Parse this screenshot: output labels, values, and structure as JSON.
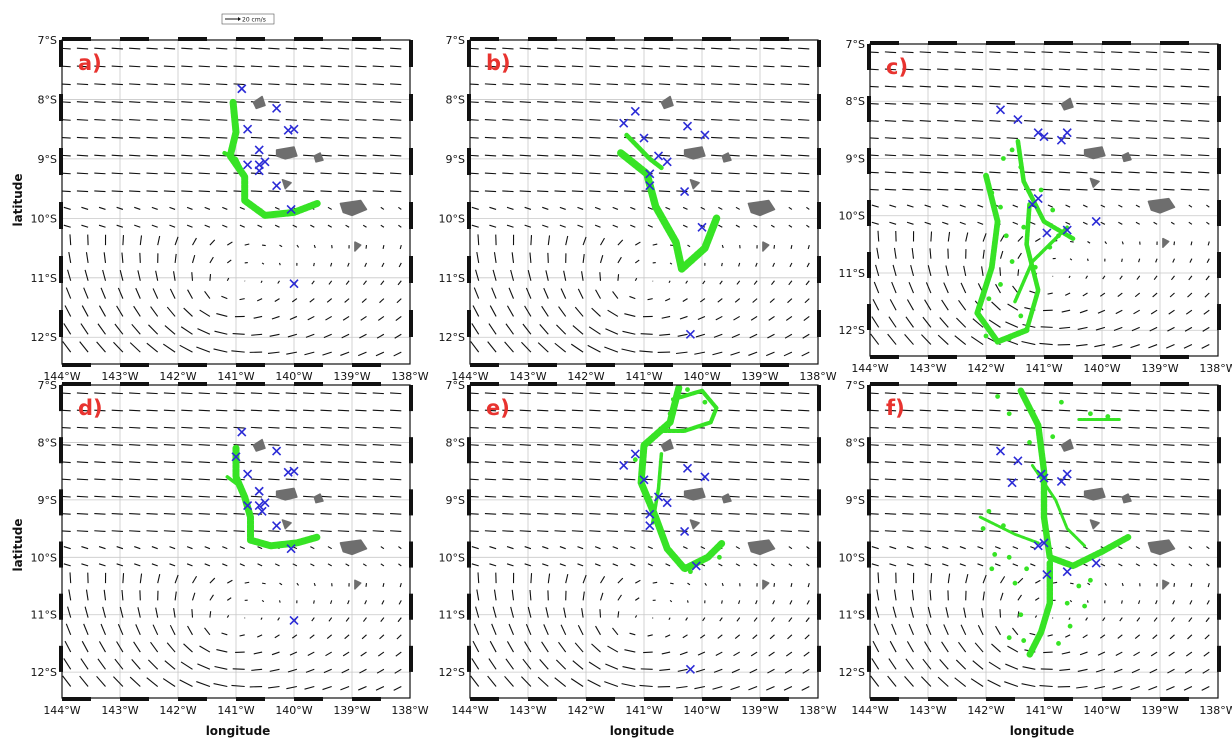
{
  "figure": {
    "scale_label": "20 cm/s",
    "xlabel": "longitude",
    "ylabel": "latitude",
    "lat_ticks": [
      "7°S",
      "8°S",
      "9°S",
      "10°S",
      "11°S",
      "12°S"
    ],
    "lat_values": [
      -7,
      -8,
      -9,
      -10,
      -11,
      -12
    ],
    "lon_ticks": [
      "144°W",
      "143°W",
      "142°W",
      "141°W",
      "140°W",
      "139°W",
      "138°W"
    ],
    "lon_values": [
      -144,
      -143,
      -142,
      -141,
      -140,
      -139,
      -138
    ],
    "lon_range": [
      -144,
      -138
    ],
    "lat_range": [
      -12.45,
      -7
    ],
    "colors": {
      "larvae": "#37e325",
      "stations": "#2b2bd6",
      "arrows": "#111111",
      "land": "#6e6e6e",
      "labels": "#e8332f",
      "grid": "#c8c8c8"
    },
    "panels": [
      {
        "label": "a)",
        "stations": [
          [
            -140.9,
            -7.82
          ],
          [
            -140.8,
            -8.5
          ],
          [
            -140.3,
            -8.15
          ],
          [
            -140,
            -8.5
          ],
          [
            -140.1,
            -8.52
          ],
          [
            -140.6,
            -8.85
          ],
          [
            -140.8,
            -9.1
          ],
          [
            -140.6,
            -9.1
          ],
          [
            -140.6,
            -9.2
          ],
          [
            -140.5,
            -9.05
          ],
          [
            -140.3,
            -9.45
          ],
          [
            -140.05,
            -9.85
          ],
          [
            -140,
            -11.1
          ]
        ],
        "larvae_paths": [
          {
            "path": [
              [
                -141.05,
                -8.05
              ],
              [
                -141.0,
                -8.55
              ],
              [
                -141.1,
                -8.95
              ],
              [
                -140.85,
                -9.3
              ],
              [
                -140.85,
                -9.7
              ],
              [
                -140.5,
                -9.95
              ],
              [
                -140.0,
                -9.9
              ],
              [
                -139.6,
                -9.75
              ]
            ],
            "width": 0.12
          },
          {
            "path": [
              [
                -141.2,
                -8.9
              ],
              [
                -141.0,
                -9.0
              ],
              [
                -140.9,
                -9.2
              ]
            ],
            "width": 0.07
          }
        ],
        "larvae_scatter": []
      },
      {
        "label": "b)",
        "stations": [
          [
            -141.35,
            -8.4
          ],
          [
            -141.15,
            -8.2
          ],
          [
            -141.0,
            -8.65
          ],
          [
            -140.25,
            -8.45
          ],
          [
            -139.95,
            -8.6
          ],
          [
            -140.75,
            -8.95
          ],
          [
            -140.6,
            -9.05
          ],
          [
            -140.9,
            -9.25
          ],
          [
            -140.9,
            -9.45
          ],
          [
            -140.3,
            -9.55
          ],
          [
            -140.0,
            -10.15
          ],
          [
            -140.2,
            -11.95
          ]
        ],
        "larvae_paths": [
          {
            "path": [
              [
                -141.4,
                -8.9
              ],
              [
                -140.95,
                -9.25
              ],
              [
                -140.8,
                -9.8
              ],
              [
                -140.45,
                -10.4
              ],
              [
                -140.35,
                -10.85
              ],
              [
                -139.95,
                -10.5
              ],
              [
                -139.75,
                -10.0
              ]
            ],
            "width": 0.13
          },
          {
            "path": [
              [
                -141.3,
                -8.6
              ],
              [
                -140.9,
                -9.0
              ],
              [
                -140.7,
                -9.15
              ]
            ],
            "width": 0.08
          }
        ],
        "larvae_scatter": []
      },
      {
        "label": "c)",
        "stations": [
          [
            -141.75,
            -8.15
          ],
          [
            -141.45,
            -8.32
          ],
          [
            -141.1,
            -8.55
          ],
          [
            -141.0,
            -8.62
          ],
          [
            -140.7,
            -8.68
          ],
          [
            -140.6,
            -8.55
          ],
          [
            -141.2,
            -9.8
          ],
          [
            -141.1,
            -9.7
          ],
          [
            -140.95,
            -10.3
          ],
          [
            -140.6,
            -10.25
          ],
          [
            -140.1,
            -10.1
          ]
        ],
        "larvae_paths": [
          {
            "path": [
              [
                -141.45,
                -8.7
              ],
              [
                -141.35,
                -9.4
              ],
              [
                -141.0,
                -10.1
              ],
              [
                -140.5,
                -10.4
              ]
            ],
            "width": 0.08
          },
          {
            "path": [
              [
                -142.0,
                -9.3
              ],
              [
                -141.8,
                -10.1
              ],
              [
                -141.9,
                -10.9
              ],
              [
                -142.15,
                -11.7
              ],
              [
                -141.8,
                -12.2
              ],
              [
                -141.3,
                -12.0
              ]
            ],
            "width": 0.1
          },
          {
            "path": [
              [
                -141.3,
                -12.0
              ],
              [
                -141.1,
                -11.3
              ],
              [
                -141.3,
                -10.5
              ],
              [
                -141.25,
                -9.8
              ]
            ],
            "width": 0.08
          },
          {
            "path": [
              [
                -141.5,
                -11.5
              ],
              [
                -141.2,
                -10.8
              ],
              [
                -140.6,
                -10.2
              ]
            ],
            "width": 0.06
          }
        ],
        "larvae_scatter": [
          [
            -141.7,
            -9.0
          ],
          [
            -141.55,
            -8.85
          ],
          [
            -141.4,
            -9.15
          ],
          [
            -141.9,
            -9.6
          ],
          [
            -141.65,
            -10.35
          ],
          [
            -141.55,
            -10.8
          ],
          [
            -141.75,
            -11.2
          ],
          [
            -141.15,
            -10.9
          ],
          [
            -140.9,
            -10.55
          ],
          [
            -140.75,
            -10.35
          ],
          [
            -141.4,
            -11.75
          ],
          [
            -142.0,
            -12.1
          ],
          [
            -141.6,
            -12.15
          ],
          [
            -141.35,
            -10.2
          ],
          [
            -141.05,
            -9.55
          ],
          [
            -140.85,
            -9.9
          ],
          [
            -141.75,
            -9.85
          ],
          [
            -141.95,
            -11.45
          ]
        ]
      },
      {
        "label": "d)",
        "stations": [
          [
            -140.9,
            -7.82
          ],
          [
            -141.0,
            -8.25
          ],
          [
            -140.8,
            -8.55
          ],
          [
            -140.3,
            -8.15
          ],
          [
            -140.0,
            -8.5
          ],
          [
            -140.1,
            -8.52
          ],
          [
            -140.6,
            -8.85
          ],
          [
            -140.8,
            -9.1
          ],
          [
            -140.6,
            -9.1
          ],
          [
            -140.55,
            -9.2
          ],
          [
            -140.5,
            -9.05
          ],
          [
            -140.3,
            -9.45
          ],
          [
            -140.05,
            -9.85
          ],
          [
            -140.0,
            -11.1
          ]
        ],
        "larvae_paths": [
          {
            "path": [
              [
                -141.0,
                -8.1
              ],
              [
                -141.0,
                -8.6
              ],
              [
                -140.85,
                -8.95
              ],
              [
                -140.75,
                -9.3
              ],
              [
                -140.75,
                -9.7
              ],
              [
                -140.4,
                -9.8
              ],
              [
                -139.95,
                -9.75
              ],
              [
                -139.6,
                -9.65
              ]
            ],
            "width": 0.12
          },
          {
            "path": [
              [
                -141.15,
                -8.6
              ],
              [
                -140.95,
                -8.75
              ]
            ],
            "width": 0.06
          }
        ],
        "larvae_scatter": []
      },
      {
        "label": "e)",
        "stations": [
          [
            -141.35,
            -8.4
          ],
          [
            -141.15,
            -8.2
          ],
          [
            -141.0,
            -8.65
          ],
          [
            -140.25,
            -8.45
          ],
          [
            -139.95,
            -8.6
          ],
          [
            -140.75,
            -8.95
          ],
          [
            -140.6,
            -9.05
          ],
          [
            -140.9,
            -9.25
          ],
          [
            -140.9,
            -9.45
          ],
          [
            -140.3,
            -9.55
          ],
          [
            -140.1,
            -10.15
          ],
          [
            -140.2,
            -11.95
          ]
        ],
        "larvae_paths": [
          {
            "path": [
              [
                -140.4,
                -7.05
              ],
              [
                -140.55,
                -7.65
              ],
              [
                -141.0,
                -8.05
              ],
              [
                -141.05,
                -8.7
              ],
              [
                -140.8,
                -9.3
              ],
              [
                -140.6,
                -9.85
              ],
              [
                -140.3,
                -10.2
              ],
              [
                -139.9,
                -10.0
              ],
              [
                -139.65,
                -9.75
              ]
            ],
            "width": 0.12
          },
          {
            "path": [
              [
                -140.5,
                -7.25
              ],
              [
                -140.0,
                -7.1
              ],
              [
                -139.75,
                -7.4
              ],
              [
                -139.85,
                -7.65
              ],
              [
                -140.3,
                -7.8
              ],
              [
                -140.7,
                -7.8
              ]
            ],
            "width": 0.07
          },
          {
            "path": [
              [
                -140.7,
                -8.2
              ],
              [
                -140.75,
                -8.8
              ],
              [
                -140.85,
                -9.4
              ]
            ],
            "width": 0.06
          }
        ],
        "larvae_scatter": [
          [
            -140.25,
            -7.08
          ],
          [
            -139.95,
            -7.3
          ],
          [
            -140.55,
            -7.5
          ],
          [
            -141.15,
            -8.3
          ],
          [
            -140.2,
            -10.25
          ],
          [
            -139.7,
            -10.0
          ]
        ]
      },
      {
        "label": "f)",
        "stations": [
          [
            -141.75,
            -8.15
          ],
          [
            -141.45,
            -8.32
          ],
          [
            -141.55,
            -8.7
          ],
          [
            -141.05,
            -8.55
          ],
          [
            -141.0,
            -8.62
          ],
          [
            -140.7,
            -8.68
          ],
          [
            -140.6,
            -8.55
          ],
          [
            -141.1,
            -9.8
          ],
          [
            -141.0,
            -9.75
          ],
          [
            -140.95,
            -10.3
          ],
          [
            -140.6,
            -10.25
          ],
          [
            -140.1,
            -10.1
          ]
        ],
        "larvae_paths": [
          {
            "path": [
              [
                -141.4,
                -7.1
              ],
              [
                -141.1,
                -7.7
              ],
              [
                -141.0,
                -8.5
              ],
              [
                -141.0,
                -9.3
              ],
              [
                -140.9,
                -10.0
              ],
              [
                -140.5,
                -10.15
              ],
              [
                -140.0,
                -9.9
              ],
              [
                -139.55,
                -9.65
              ]
            ],
            "width": 0.11
          },
          {
            "path": [
              [
                -140.9,
                -10.1
              ],
              [
                -140.9,
                -10.8
              ],
              [
                -141.05,
                -11.3
              ],
              [
                -141.25,
                -11.7
              ]
            ],
            "width": 0.11
          },
          {
            "path": [
              [
                -142.1,
                -9.3
              ],
              [
                -141.5,
                -9.6
              ],
              [
                -141.1,
                -9.75
              ]
            ],
            "width": 0.05
          },
          {
            "path": [
              [
                -141.2,
                -8.4
              ],
              [
                -140.8,
                -9.0
              ],
              [
                -140.6,
                -9.5
              ],
              [
                -140.3,
                -9.8
              ]
            ],
            "width": 0.05
          },
          {
            "path": [
              [
                -140.4,
                -7.6
              ],
              [
                -139.7,
                -7.6
              ]
            ],
            "width": 0.05
          }
        ],
        "larvae_scatter": [
          [
            -141.8,
            -7.2
          ],
          [
            -141.6,
            -7.5
          ],
          [
            -140.7,
            -7.3
          ],
          [
            -140.2,
            -7.5
          ],
          [
            -139.9,
            -7.55
          ],
          [
            -141.95,
            -9.2
          ],
          [
            -141.7,
            -9.45
          ],
          [
            -142.05,
            -9.5
          ],
          [
            -141.85,
            -9.95
          ],
          [
            -141.6,
            -10.0
          ],
          [
            -141.3,
            -10.2
          ],
          [
            -141.5,
            -10.45
          ],
          [
            -140.4,
            -10.5
          ],
          [
            -140.2,
            -10.4
          ],
          [
            -140.6,
            -10.8
          ],
          [
            -140.55,
            -11.2
          ],
          [
            -141.4,
            -11.0
          ],
          [
            -141.6,
            -11.4
          ],
          [
            -140.75,
            -11.5
          ],
          [
            -141.35,
            -11.45
          ],
          [
            -140.3,
            -10.85
          ],
          [
            -141.9,
            -10.2
          ],
          [
            -140.85,
            -7.9
          ],
          [
            -141.25,
            -8.0
          ]
        ]
      }
    ]
  }
}
